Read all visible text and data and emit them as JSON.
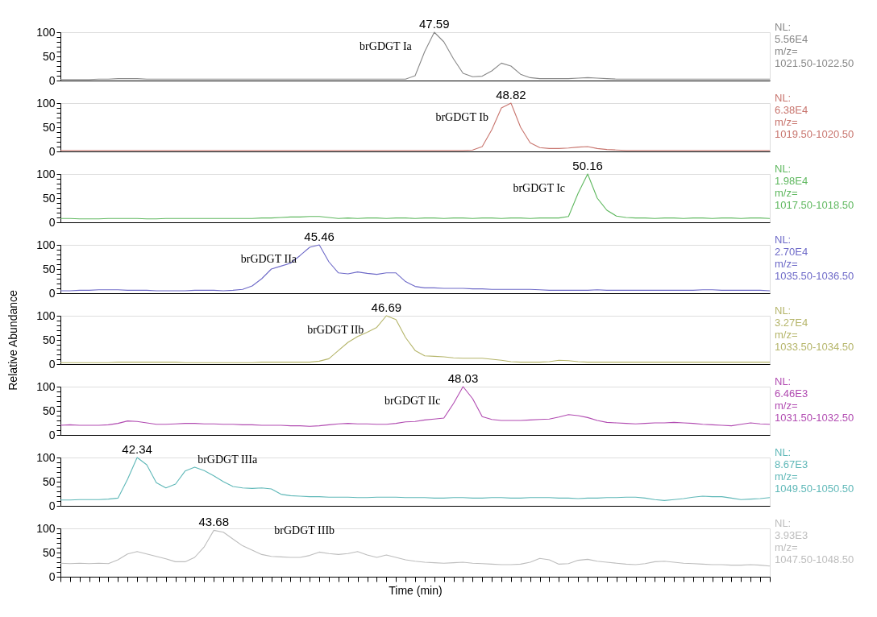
{
  "chart_data": [
    {
      "type": "line",
      "categories": [
        null,
        null,
        null,
        null,
        null,
        null,
        null,
        null,
        null,
        null,
        null,
        null,
        null,
        null,
        null,
        null,
        null,
        null,
        null,
        null,
        null,
        null,
        null,
        null,
        null,
        null,
        null,
        null,
        null,
        null,
        null,
        null,
        null,
        null,
        null,
        null,
        null,
        null,
        null,
        null,
        null,
        null,
        null,
        null,
        null,
        null,
        null,
        null,
        null,
        null,
        null,
        null,
        null,
        null,
        null,
        null,
        null,
        null,
        null,
        null,
        null,
        null,
        null,
        null,
        null,
        null,
        null,
        null,
        null,
        null,
        null,
        null,
        null,
        null,
        null
      ],
      "ylim": [
        0,
        100
      ],
      "yticks": [
        0,
        {
          "value": 10,
          "label": null
        },
        {
          "value": 20,
          "label": null
        },
        {
          "value": 30,
          "label": null
        },
        {
          "value": 40,
          "label": null
        },
        50,
        {
          "value": 60,
          "label": null
        },
        {
          "value": 70,
          "label": null
        },
        {
          "value": 80,
          "label": null
        },
        {
          "value": 90,
          "label": null
        },
        100
      ],
      "tick_labels": "y",
      "series": [
        {
          "color": "#888888",
          "values": [
            2,
            2,
            2,
            2,
            3,
            3,
            4,
            4,
            4,
            3,
            3,
            3,
            3,
            3,
            3,
            3,
            3,
            3,
            3,
            3,
            3,
            3,
            3,
            3,
            3,
            3,
            3,
            3,
            3,
            3,
            3,
            3,
            3,
            3,
            3,
            3,
            3,
            10,
            60,
            100,
            80,
            45,
            15,
            8,
            9,
            20,
            36,
            30,
            13,
            6,
            4,
            4,
            4,
            4,
            5,
            6,
            5,
            4,
            3,
            3,
            3,
            3,
            3,
            3,
            3,
            3,
            3,
            3,
            3,
            3,
            3,
            3,
            3,
            3,
            3
          ]
        }
      ],
      "annotations": [
        {
          "text": "47.59",
          "y": 100
        },
        "brGDGT Ia",
        "NL:",
        "5.56E4",
        "m/z=",
        "1021.50-1022.50"
      ]
    },
    {
      "type": "line",
      "categories": [
        null,
        null,
        null,
        null,
        null,
        null,
        null,
        null,
        null,
        null,
        null,
        null,
        null,
        null,
        null,
        null,
        null,
        null,
        null,
        null,
        null,
        null,
        null,
        null,
        null,
        null,
        null,
        null,
        null,
        null,
        null,
        null,
        null,
        null,
        null,
        null,
        null,
        null,
        null,
        null,
        null,
        null,
        null,
        null,
        null,
        null,
        null,
        null,
        null,
        null,
        null,
        null,
        null,
        null,
        null,
        null,
        null,
        null,
        null,
        null,
        null,
        null,
        null,
        null,
        null,
        null,
        null,
        null,
        null,
        null,
        null,
        null,
        null,
        null,
        null
      ],
      "ylim": [
        0,
        100
      ],
      "yticks": [
        0,
        {
          "value": 10,
          "label": null
        },
        {
          "value": 20,
          "label": null
        },
        {
          "value": 30,
          "label": null
        },
        {
          "value": 40,
          "label": null
        },
        50,
        {
          "value": 60,
          "label": null
        },
        {
          "value": 70,
          "label": null
        },
        {
          "value": 80,
          "label": null
        },
        {
          "value": 90,
          "label": null
        },
        100
      ],
      "tick_labels": "y",
      "series": [
        {
          "color": "#c8756e",
          "values": [
            2,
            2,
            2,
            2,
            2,
            2,
            2,
            2,
            2,
            2,
            2,
            2,
            2,
            2,
            2,
            2,
            2,
            2,
            2,
            2,
            2,
            2,
            2,
            2,
            2,
            2,
            2,
            2,
            2,
            2,
            2,
            2,
            2,
            2,
            2,
            2,
            2,
            2,
            2,
            2,
            2,
            2,
            2,
            3,
            10,
            45,
            90,
            100,
            50,
            18,
            8,
            6,
            6,
            7,
            9,
            10,
            6,
            4,
            3,
            2,
            2,
            2,
            2,
            2,
            2,
            2,
            2,
            2,
            2,
            2,
            2,
            2,
            2,
            2,
            2
          ]
        }
      ],
      "annotations": [
        {
          "text": "48.82",
          "y": 100
        },
        "brGDGT Ib",
        "NL:",
        "6.38E4",
        "m/z=",
        "1019.50-1020.50"
      ]
    },
    {
      "type": "line",
      "categories": [
        null,
        null,
        null,
        null,
        null,
        null,
        null,
        null,
        null,
        null,
        null,
        null,
        null,
        null,
        null,
        null,
        null,
        null,
        null,
        null,
        null,
        null,
        null,
        null,
        null,
        null,
        null,
        null,
        null,
        null,
        null,
        null,
        null,
        null,
        null,
        null,
        null,
        null,
        null,
        null,
        null,
        null,
        null,
        null,
        null,
        null,
        null,
        null,
        null,
        null,
        null,
        null,
        null,
        null,
        null,
        null,
        null,
        null,
        null,
        null,
        null,
        null,
        null,
        null,
        null,
        null,
        null,
        null,
        null,
        null,
        null,
        null,
        null,
        null,
        null
      ],
      "ylim": [
        0,
        100
      ],
      "yticks": [
        0,
        {
          "value": 10,
          "label": null
        },
        {
          "value": 20,
          "label": null
        },
        {
          "value": 30,
          "label": null
        },
        {
          "value": 40,
          "label": null
        },
        50,
        {
          "value": 60,
          "label": null
        },
        {
          "value": 70,
          "label": null
        },
        {
          "value": 80,
          "label": null
        },
        {
          "value": 90,
          "label": null
        },
        100
      ],
      "tick_labels": "y",
      "series": [
        {
          "color": "#5fb85f",
          "values": [
            8,
            8,
            7,
            7,
            7,
            8,
            8,
            8,
            8,
            7,
            7,
            8,
            8,
            8,
            8,
            8,
            8,
            8,
            8,
            8,
            8,
            9,
            9,
            10,
            11,
            11,
            12,
            12,
            10,
            8,
            9,
            8,
            9,
            9,
            8,
            9,
            9,
            8,
            9,
            9,
            8,
            9,
            9,
            8,
            9,
            9,
            8,
            9,
            9,
            8,
            9,
            9,
            9,
            12,
            60,
            100,
            50,
            25,
            13,
            10,
            9,
            9,
            8,
            9,
            9,
            8,
            9,
            9,
            8,
            9,
            9,
            8,
            9,
            9,
            8
          ]
        }
      ],
      "annotations": [
        {
          "text": "50.16",
          "y": 100
        },
        "brGDGT Ic",
        "NL:",
        "1.98E4",
        "m/z=",
        "1017.50-1018.50"
      ]
    },
    {
      "type": "line",
      "categories": [
        null,
        null,
        null,
        null,
        null,
        null,
        null,
        null,
        null,
        null,
        null,
        null,
        null,
        null,
        null,
        null,
        null,
        null,
        null,
        null,
        null,
        null,
        null,
        null,
        null,
        null,
        null,
        null,
        null,
        null,
        null,
        null,
        null,
        null,
        null,
        null,
        null,
        null,
        null,
        null,
        null,
        null,
        null,
        null,
        null,
        null,
        null,
        null,
        null,
        null,
        null,
        null,
        null,
        null,
        null,
        null,
        null,
        null,
        null,
        null,
        null,
        null,
        null,
        null,
        null,
        null,
        null,
        null,
        null,
        null,
        null,
        null,
        null,
        null,
        null
      ],
      "ylim": [
        0,
        100
      ],
      "yticks": [
        0,
        {
          "value": 10,
          "label": null
        },
        {
          "value": 20,
          "label": null
        },
        {
          "value": 30,
          "label": null
        },
        {
          "value": 40,
          "label": null
        },
        50,
        {
          "value": 60,
          "label": null
        },
        {
          "value": 70,
          "label": null
        },
        {
          "value": 80,
          "label": null
        },
        {
          "value": 90,
          "label": null
        },
        100
      ],
      "tick_labels": "y",
      "series": [
        {
          "color": "#6e6ac8",
          "values": [
            5,
            5,
            6,
            6,
            7,
            7,
            7,
            6,
            6,
            6,
            5,
            5,
            5,
            5,
            6,
            6,
            6,
            5,
            6,
            8,
            15,
            30,
            50,
            56,
            62,
            78,
            95,
            100,
            65,
            42,
            40,
            44,
            41,
            39,
            42,
            42,
            24,
            14,
            11,
            11,
            10,
            10,
            10,
            9,
            9,
            8,
            8,
            8,
            8,
            8,
            7,
            6,
            6,
            6,
            6,
            6,
            7,
            6,
            6,
            6,
            6,
            6,
            6,
            6,
            6,
            6,
            6,
            7,
            7,
            6,
            6,
            6,
            6,
            6,
            5
          ]
        }
      ],
      "annotations": [
        {
          "text": "45.46",
          "y": 100
        },
        "brGDGT IIa",
        "NL:",
        "2.70E4",
        "m/z=",
        "1035.50-1036.50"
      ]
    },
    {
      "type": "line",
      "categories": [
        null,
        null,
        null,
        null,
        null,
        null,
        null,
        null,
        null,
        null,
        null,
        null,
        null,
        null,
        null,
        null,
        null,
        null,
        null,
        null,
        null,
        null,
        null,
        null,
        null,
        null,
        null,
        null,
        null,
        null,
        null,
        null,
        null,
        null,
        null,
        null,
        null,
        null,
        null,
        null,
        null,
        null,
        null,
        null,
        null,
        null,
        null,
        null,
        null,
        null,
        null,
        null,
        null,
        null,
        null,
        null,
        null,
        null,
        null,
        null,
        null,
        null,
        null,
        null,
        null,
        null,
        null,
        null,
        null,
        null,
        null,
        null,
        null,
        null,
        null
      ],
      "ylim": [
        0,
        100
      ],
      "yticks": [
        0,
        {
          "value": 10,
          "label": null
        },
        {
          "value": 20,
          "label": null
        },
        {
          "value": 30,
          "label": null
        },
        {
          "value": 40,
          "label": null
        },
        50,
        {
          "value": 60,
          "label": null
        },
        {
          "value": 70,
          "label": null
        },
        {
          "value": 80,
          "label": null
        },
        {
          "value": 90,
          "label": null
        },
        100
      ],
      "tick_labels": "y",
      "ylabel": "Relative Abundance",
      "series": [
        {
          "color": "#b5b56a",
          "values": [
            3,
            3,
            3,
            3,
            3,
            3,
            4,
            4,
            4,
            4,
            4,
            4,
            4,
            3,
            3,
            3,
            3,
            3,
            3,
            3,
            3,
            4,
            4,
            4,
            4,
            4,
            4,
            6,
            11,
            28,
            45,
            57,
            66,
            76,
            100,
            92,
            55,
            28,
            17,
            16,
            15,
            13,
            12,
            12,
            12,
            10,
            8,
            5,
            4,
            4,
            4,
            5,
            8,
            7,
            5,
            4,
            4,
            4,
            4,
            4,
            4,
            4,
            4,
            4,
            4,
            4,
            4,
            4,
            4,
            4,
            4,
            4,
            4,
            4,
            4
          ]
        }
      ],
      "annotations": [
        {
          "text": "46.69",
          "y": 100
        },
        "brGDGT IIb",
        "NL:",
        "3.27E4",
        "m/z=",
        "1033.50-1034.50"
      ]
    },
    {
      "type": "line",
      "categories": [
        null,
        null,
        null,
        null,
        null,
        null,
        null,
        null,
        null,
        null,
        null,
        null,
        null,
        null,
        null,
        null,
        null,
        null,
        null,
        null,
        null,
        null,
        null,
        null,
        null,
        null,
        null,
        null,
        null,
        null,
        null,
        null,
        null,
        null,
        null,
        null,
        null,
        null,
        null,
        null,
        null,
        null,
        null,
        null,
        null,
        null,
        null,
        null,
        null,
        null,
        null,
        null,
        null,
        null,
        null,
        null,
        null,
        null,
        null,
        null,
        null,
        null,
        null,
        null,
        null,
        null,
        null,
        null,
        null,
        null,
        null,
        null,
        null,
        null,
        null
      ],
      "ylim": [
        0,
        100
      ],
      "yticks": [
        0,
        {
          "value": 10,
          "label": null
        },
        {
          "value": 20,
          "label": null
        },
        {
          "value": 30,
          "label": null
        },
        {
          "value": 40,
          "label": null
        },
        50,
        {
          "value": 60,
          "label": null
        },
        {
          "value": 70,
          "label": null
        },
        {
          "value": 80,
          "label": null
        },
        {
          "value": 90,
          "label": null
        },
        100
      ],
      "tick_labels": "y",
      "series": [
        {
          "color": "#b14bb1",
          "values": [
            20,
            21,
            20,
            20,
            20,
            21,
            24,
            29,
            28,
            25,
            22,
            22,
            23,
            24,
            24,
            23,
            23,
            22,
            22,
            21,
            21,
            20,
            20,
            20,
            19,
            19,
            18,
            19,
            21,
            23,
            24,
            23,
            23,
            22,
            22,
            24,
            27,
            28,
            31,
            33,
            35,
            65,
            100,
            75,
            38,
            32,
            30,
            30,
            30,
            31,
            32,
            33,
            37,
            42,
            40,
            36,
            30,
            26,
            25,
            24,
            23,
            24,
            25,
            25,
            26,
            25,
            24,
            22,
            21,
            20,
            19,
            22,
            25,
            23,
            22
          ]
        }
      ],
      "annotations": [
        {
          "text": "48.03",
          "y": 100
        },
        "brGDGT IIc",
        "NL:",
        "6.46E3",
        "m/z=",
        "1031.50-1032.50"
      ]
    },
    {
      "type": "line",
      "categories": [
        null,
        null,
        null,
        null,
        null,
        null,
        null,
        null,
        null,
        null,
        null,
        null,
        null,
        null,
        null,
        null,
        null,
        null,
        null,
        null,
        null,
        null,
        null,
        null,
        null,
        null,
        null,
        null,
        null,
        null,
        null,
        null,
        null,
        null,
        null,
        null,
        null,
        null,
        null,
        null,
        null,
        null,
        null,
        null,
        null,
        null,
        null,
        null,
        null,
        null,
        null,
        null,
        null,
        null,
        null,
        null,
        null,
        null,
        null,
        null,
        null,
        null,
        null,
        null,
        null,
        null,
        null,
        null,
        null,
        null,
        null,
        null,
        null,
        null,
        null
      ],
      "ylim": [
        0,
        100
      ],
      "yticks": [
        0,
        {
          "value": 10,
          "label": null
        },
        {
          "value": 20,
          "label": null
        },
        {
          "value": 30,
          "label": null
        },
        {
          "value": 40,
          "label": null
        },
        50,
        {
          "value": 60,
          "label": null
        },
        {
          "value": 70,
          "label": null
        },
        {
          "value": 80,
          "label": null
        },
        {
          "value": 90,
          "label": null
        },
        100
      ],
      "tick_labels": "y",
      "series": [
        {
          "color": "#5fb8b8",
          "values": [
            12,
            12,
            13,
            13,
            13,
            14,
            16,
            55,
            100,
            85,
            48,
            37,
            45,
            72,
            80,
            73,
            62,
            50,
            40,
            37,
            36,
            37,
            35,
            24,
            21,
            20,
            19,
            19,
            18,
            18,
            18,
            17,
            17,
            18,
            18,
            18,
            17,
            17,
            17,
            16,
            16,
            17,
            17,
            16,
            16,
            17,
            17,
            16,
            16,
            17,
            17,
            17,
            16,
            16,
            15,
            16,
            16,
            17,
            17,
            18,
            18,
            16,
            13,
            11,
            13,
            15,
            18,
            20,
            19,
            19,
            16,
            13,
            14,
            15,
            17
          ]
        }
      ],
      "annotations": [
        {
          "text": "42.34",
          "y": 100
        },
        "brGDGT IIIa",
        "NL:",
        "8.67E3",
        "m/z=",
        "1049.50-1050.50"
      ]
    },
    {
      "type": "line",
      "categories": [
        null,
        null,
        null,
        null,
        null,
        null,
        null,
        null,
        null,
        null,
        null,
        null,
        null,
        null,
        null,
        null,
        null,
        null,
        null,
        null,
        null,
        null,
        null,
        null,
        null,
        null,
        null,
        null,
        null,
        null,
        null,
        null,
        null,
        null,
        null,
        null,
        null,
        null,
        null,
        null,
        null,
        null,
        null,
        null,
        null,
        null,
        null,
        null,
        null,
        null,
        null,
        null,
        null,
        null,
        null,
        null,
        null,
        null,
        null,
        null,
        null,
        null,
        null,
        null,
        null,
        null,
        null,
        null,
        null,
        null,
        null,
        null,
        null,
        null,
        null
      ],
      "ylim": [
        0,
        100
      ],
      "yticks": [
        0,
        {
          "value": 10,
          "label": null
        },
        {
          "value": 20,
          "label": null
        },
        {
          "value": 30,
          "label": null
        },
        {
          "value": 40,
          "label": null
        },
        50,
        {
          "value": 60,
          "label": null
        },
        {
          "value": 70,
          "label": null
        },
        {
          "value": 80,
          "label": null
        },
        {
          "value": 90,
          "label": null
        },
        100
      ],
      "tick_labels": "y",
      "xlabel": "Time (min)",
      "series": [
        {
          "color": "#bdbdbd",
          "values": [
            28,
            27,
            28,
            27,
            28,
            27,
            35,
            47,
            52,
            47,
            42,
            37,
            31,
            31,
            40,
            62,
            96,
            92,
            78,
            64,
            55,
            46,
            42,
            41,
            40,
            40,
            44,
            51,
            48,
            46,
            48,
            52,
            45,
            40,
            45,
            40,
            35,
            32,
            30,
            29,
            28,
            29,
            30,
            28,
            27,
            26,
            25,
            25,
            26,
            30,
            38,
            35,
            26,
            27,
            34,
            36,
            32,
            30,
            28,
            26,
            25,
            27,
            31,
            32,
            30,
            28,
            27,
            26,
            25,
            25,
            24,
            24,
            25,
            24,
            22
          ]
        }
      ],
      "annotations": [
        {
          "text": "43.68",
          "y": 96
        },
        "brGDGT IIIb",
        "NL:",
        "3.93E3",
        "m/z=",
        "1047.50-1048.50"
      ]
    }
  ]
}
